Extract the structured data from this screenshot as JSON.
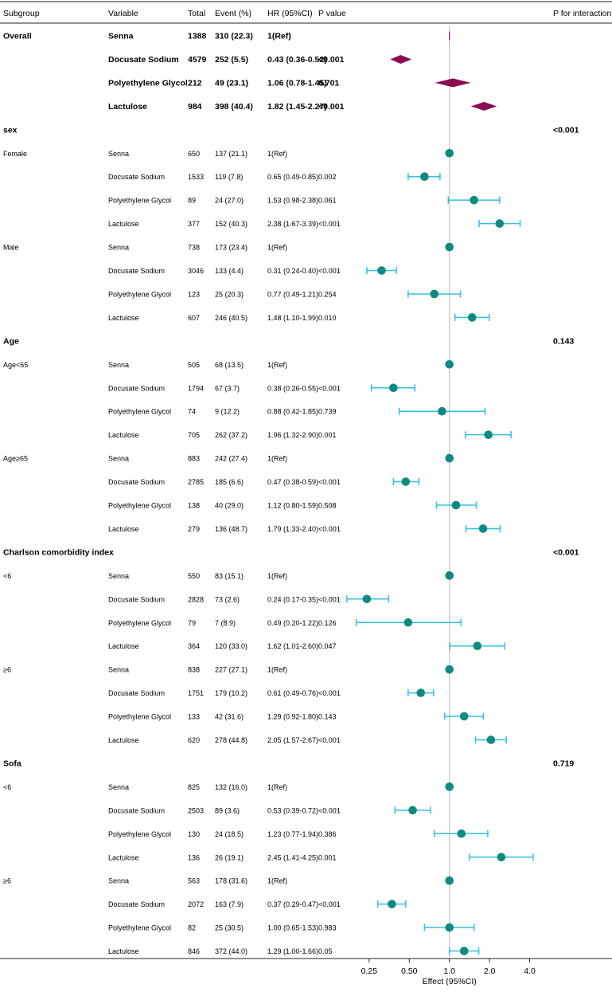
{
  "header": {
    "subgroup": "Subgroup",
    "variable": "Variable",
    "total": "Total",
    "event": "Event (%)",
    "hr": "HR (95%CI)",
    "pvalue": "P value",
    "interaction": "P for interaction"
  },
  "colors": {
    "overall_marker": "#8b0d54",
    "point": "#0f8a80",
    "ci": "#30c0e0",
    "refline": "#bbbbbb",
    "rule": "#222222"
  },
  "chart_data": {
    "type": "forest",
    "xlabel": "Effect (95%CI)",
    "x_scale": "log2",
    "xlim": [
      0.18,
      5.6
    ],
    "xticks": [
      0.25,
      0.5,
      1.0,
      2.0,
      4.0
    ],
    "xtick_labels": [
      "0.25",
      "0.50",
      "1.0",
      "2.0",
      "4.0"
    ],
    "reference": 1.0,
    "rows": [
      {
        "kind": "overall",
        "subgroup": "Overall",
        "variable": "Senna",
        "total": "1388",
        "event": "310 (22.3)",
        "hr": "1(Ref)",
        "p": "",
        "est": 1.0
      },
      {
        "kind": "overall",
        "subgroup": "",
        "variable": "Docusate Sodium",
        "total": "4579",
        "event": "252 (5.5)",
        "hr": "0.43 (0.36-0.52)",
        "p": "<0.001",
        "est": 0.43,
        "lo": 0.36,
        "hi": 0.52
      },
      {
        "kind": "overall",
        "subgroup": "",
        "variable": "Polyethylene Glycol",
        "total": "212",
        "event": "49 (23.1)",
        "hr": "1.06 (0.78-1.45)",
        "p": "0.701",
        "est": 1.06,
        "lo": 0.78,
        "hi": 1.45
      },
      {
        "kind": "overall",
        "subgroup": "",
        "variable": "Lactulose",
        "total": "984",
        "event": "398 (40.4)",
        "hr": "1.82 (1.45-2.27)",
        "p": "<0.001",
        "est": 1.82,
        "lo": 1.45,
        "hi": 2.27
      },
      {
        "kind": "header",
        "subgroup": "sex",
        "interaction": "<0.001"
      },
      {
        "kind": "data",
        "subgroup": "Female",
        "variable": "Senna",
        "total": "650",
        "event": "137 (21.1)",
        "hr": "1(Ref)",
        "p": "",
        "est": 1.0
      },
      {
        "kind": "data",
        "subgroup": "",
        "variable": "Docusate Sodium",
        "total": "1533",
        "event": "119 (7.8)",
        "hr": "0.65 (0.49-0.85)",
        "p": "0.002",
        "est": 0.65,
        "lo": 0.49,
        "hi": 0.85
      },
      {
        "kind": "data",
        "subgroup": "",
        "variable": "Polyethylene Glycol",
        "total": "89",
        "event": "24 (27.0)",
        "hr": "1.53 (0.98-2.38)",
        "p": "0.061",
        "est": 1.53,
        "lo": 0.98,
        "hi": 2.38
      },
      {
        "kind": "data",
        "subgroup": "",
        "variable": "Lactulose",
        "total": "377",
        "event": "152 (40.3)",
        "hr": "2.38 (1.67-3.39)",
        "p": "<0.001",
        "est": 2.38,
        "lo": 1.67,
        "hi": 3.39
      },
      {
        "kind": "data",
        "subgroup": "Male",
        "variable": "Senna",
        "total": "738",
        "event": "173 (23.4)",
        "hr": "1(Ref)",
        "p": "",
        "est": 1.0
      },
      {
        "kind": "data",
        "subgroup": "",
        "variable": "Docusate Sodium",
        "total": "3046",
        "event": "133 (4.4)",
        "hr": "0.31 (0.24-0.40)",
        "p": "<0.001",
        "est": 0.31,
        "lo": 0.24,
        "hi": 0.4
      },
      {
        "kind": "data",
        "subgroup": "",
        "variable": "Polyethylene Glycol",
        "total": "123",
        "event": "25 (20.3)",
        "hr": "0.77 (0.49-1.21)",
        "p": "0.254",
        "est": 0.77,
        "lo": 0.49,
        "hi": 1.21
      },
      {
        "kind": "data",
        "subgroup": "",
        "variable": "Lactulose",
        "total": "607",
        "event": "246 (40.5)",
        "hr": "1.48 (1.10-1.99)",
        "p": "0.010",
        "est": 1.48,
        "lo": 1.1,
        "hi": 1.99
      },
      {
        "kind": "header",
        "subgroup": "Age",
        "interaction": "0.143"
      },
      {
        "kind": "data",
        "subgroup": "Age<65",
        "variable": "Senna",
        "total": "505",
        "event": "68 (13.5)",
        "hr": "1(Ref)",
        "p": "",
        "est": 1.0
      },
      {
        "kind": "data",
        "subgroup": "",
        "variable": "Docusate Sodium",
        "total": "1794",
        "event": "67 (3.7)",
        "hr": "0.38 (0.26-0.55)",
        "p": "<0.001",
        "est": 0.38,
        "lo": 0.26,
        "hi": 0.55
      },
      {
        "kind": "data",
        "subgroup": "",
        "variable": "Polyethylene Glycol",
        "total": "74",
        "event": "9 (12.2)",
        "hr": "0.88 (0.42-1.85)",
        "p": "0.739",
        "est": 0.88,
        "lo": 0.42,
        "hi": 1.85
      },
      {
        "kind": "data",
        "subgroup": "",
        "variable": "Lactulose",
        "total": "705",
        "event": "262 (37.2)",
        "hr": "1.96 (1.32-2.90)",
        "p": "0.001",
        "est": 1.96,
        "lo": 1.32,
        "hi": 2.9
      },
      {
        "kind": "data",
        "subgroup": "Age≥65",
        "variable": "Senna",
        "total": "883",
        "event": "242 (27.4)",
        "hr": "1(Ref)",
        "p": "",
        "est": 1.0
      },
      {
        "kind": "data",
        "subgroup": "",
        "variable": "Docusate Sodium",
        "total": "2785",
        "event": "185 (6.6)",
        "hr": "0.47 (0.38-0.59)",
        "p": "<0.001",
        "est": 0.47,
        "lo": 0.38,
        "hi": 0.59
      },
      {
        "kind": "data",
        "subgroup": "",
        "variable": "Polyethylene Glycol",
        "total": "138",
        "event": "40 (29.0)",
        "hr": "1.12 (0.80-1.59)",
        "p": "0.508",
        "est": 1.12,
        "lo": 0.8,
        "hi": 1.59
      },
      {
        "kind": "data",
        "subgroup": "",
        "variable": "Lactulose",
        "total": "279",
        "event": "136 (48.7)",
        "hr": "1.79 (1.33-2.40)",
        "p": "<0.001",
        "est": 1.79,
        "lo": 1.33,
        "hi": 2.4
      },
      {
        "kind": "header",
        "subgroup": "Charlson comorbidity index",
        "interaction": "<0.001"
      },
      {
        "kind": "data",
        "subgroup": "<6",
        "variable": "Senna",
        "total": "550",
        "event": "83 (15.1)",
        "hr": "1(Ref)",
        "p": "",
        "est": 1.0
      },
      {
        "kind": "data",
        "subgroup": "",
        "variable": "Docusate Sodium",
        "total": "2828",
        "event": "73 (2.6)",
        "hr": "0.24 (0.17-0.35)",
        "p": "<0.001",
        "est": 0.24,
        "lo": 0.17,
        "hi": 0.35
      },
      {
        "kind": "data",
        "subgroup": "",
        "variable": "Polyethylene Glycol",
        "total": "79",
        "event": "7 (8.9)",
        "hr": "0.49 (0.20-1.22)",
        "p": "0.126",
        "est": 0.49,
        "lo": 0.2,
        "hi": 1.22
      },
      {
        "kind": "data",
        "subgroup": "",
        "variable": "Lactulose",
        "total": "364",
        "event": "120 (33.0)",
        "hr": "1.62 (1.01-2.60)",
        "p": "0.047",
        "est": 1.62,
        "lo": 1.01,
        "hi": 2.6
      },
      {
        "kind": "data",
        "subgroup": "≥6",
        "variable": "Senna",
        "total": "838",
        "event": "227 (27.1)",
        "hr": "1(Ref)",
        "p": "",
        "est": 1.0
      },
      {
        "kind": "data",
        "subgroup": "",
        "variable": "Docusate Sodium",
        "total": "1751",
        "event": "179 (10.2)",
        "hr": "0.61 (0.49-0.76)",
        "p": "<0.001",
        "est": 0.61,
        "lo": 0.49,
        "hi": 0.76
      },
      {
        "kind": "data",
        "subgroup": "",
        "variable": "Polyethylene Glycol",
        "total": "133",
        "event": "42 (31.6)",
        "hr": "1.29 (0.92-1.80)",
        "p": "0.143",
        "est": 1.29,
        "lo": 0.92,
        "hi": 1.8
      },
      {
        "kind": "data",
        "subgroup": "",
        "variable": "Lactulose",
        "total": "620",
        "event": "278 (44.8)",
        "hr": "2.05 (1.57-2.67)",
        "p": "<0.001",
        "est": 2.05,
        "lo": 1.57,
        "hi": 2.67
      },
      {
        "kind": "header",
        "subgroup": "Sofa",
        "interaction": "0.719"
      },
      {
        "kind": "data",
        "subgroup": "<6",
        "variable": "Senna",
        "total": "825",
        "event": "132 (16.0)",
        "hr": "1(Ref)",
        "p": "",
        "est": 1.0
      },
      {
        "kind": "data",
        "subgroup": "",
        "variable": "Docusate Sodium",
        "total": "2503",
        "event": "89 (3.6)",
        "hr": "0.53 (0.39-0.72)",
        "p": "<0.001",
        "est": 0.53,
        "lo": 0.39,
        "hi": 0.72
      },
      {
        "kind": "data",
        "subgroup": "",
        "variable": "Polyethylene Glycol",
        "total": "130",
        "event": "24 (18.5)",
        "hr": "1.23 (0.77-1.94)",
        "p": "0.386",
        "est": 1.23,
        "lo": 0.77,
        "hi": 1.94
      },
      {
        "kind": "data",
        "subgroup": "",
        "variable": "Lactulose",
        "total": "136",
        "event": "26 (19.1)",
        "hr": "2.45 (1.41-4.25)",
        "p": "0.001",
        "est": 2.45,
        "lo": 1.41,
        "hi": 4.25
      },
      {
        "kind": "data",
        "subgroup": "≥6",
        "variable": "Senna",
        "total": "563",
        "event": "178 (31.6)",
        "hr": "1(Ref)",
        "p": "",
        "est": 1.0
      },
      {
        "kind": "data",
        "subgroup": "",
        "variable": "Docusate Sodium",
        "total": "2072",
        "event": "163 (7.9)",
        "hr": "0.37 (0.29-0.47)",
        "p": "<0.001",
        "est": 0.37,
        "lo": 0.29,
        "hi": 0.47
      },
      {
        "kind": "data",
        "subgroup": "",
        "variable": "Polyethylene Glycol",
        "total": "82",
        "event": "25 (30.5)",
        "hr": "1.00 (0.65-1.53)",
        "p": "0.983",
        "est": 1.0,
        "lo": 0.65,
        "hi": 1.53
      },
      {
        "kind": "data",
        "subgroup": "",
        "variable": "Lactulose",
        "total": "846",
        "event": "372 (44.0)",
        "hr": "1.29 (1.00-1.66)",
        "p": "0.05",
        "est": 1.29,
        "lo": 1.0,
        "hi": 1.66
      }
    ]
  }
}
